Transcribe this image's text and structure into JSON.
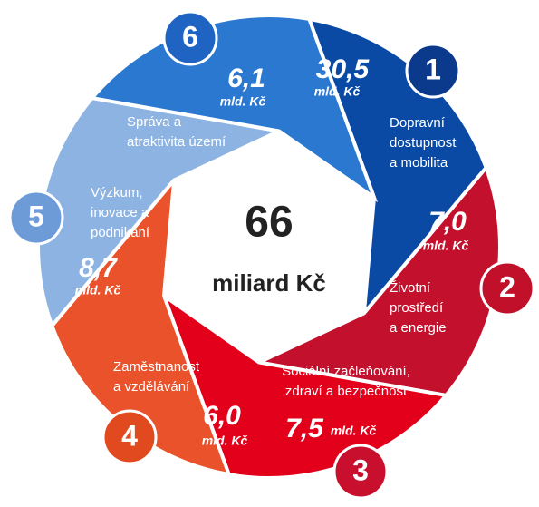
{
  "center": {
    "value": "66",
    "label": "miliard Kč"
  },
  "segments": [
    {
      "number": "1",
      "value": "30,5",
      "unit": "mld. Kč",
      "label": [
        "Dopravní",
        "dostupnost",
        "a mobilita"
      ],
      "color": "#0a4aa5",
      "badge_color": "#0b3a8c"
    },
    {
      "number": "2",
      "value": "7,0",
      "unit": "mld. Kč",
      "label": [
        "Životní",
        "prostředí",
        "a energie"
      ],
      "color": "#c3102c",
      "badge_color": "#c0102a"
    },
    {
      "number": "3",
      "value": "7,5",
      "unit": "mld. Kč",
      "label": [
        "Sociální začleňování,",
        "zdraví a bezpečnost"
      ],
      "color": "#e2001a",
      "badge_color": "#c8102e"
    },
    {
      "number": "4",
      "value": "6,0",
      "unit": "mld. Kč",
      "label": [
        "Zaměstnanost",
        "a vzdělávání"
      ],
      "color": "#e9522a",
      "badge_color": "#e04a1e"
    },
    {
      "number": "5",
      "value": "8,7",
      "unit": "mld. Kč",
      "label": [
        "Výzkum,",
        "inovace a",
        "podnikání"
      ],
      "color": "#8cb3e1",
      "badge_color": "#6c9bd8"
    },
    {
      "number": "6",
      "value": "6,1",
      "unit": "mld. Kč",
      "label": [
        "Správa a",
        "atraktivita území"
      ],
      "color": "#2a78d0",
      "badge_color": "#1f64c3"
    }
  ]
}
